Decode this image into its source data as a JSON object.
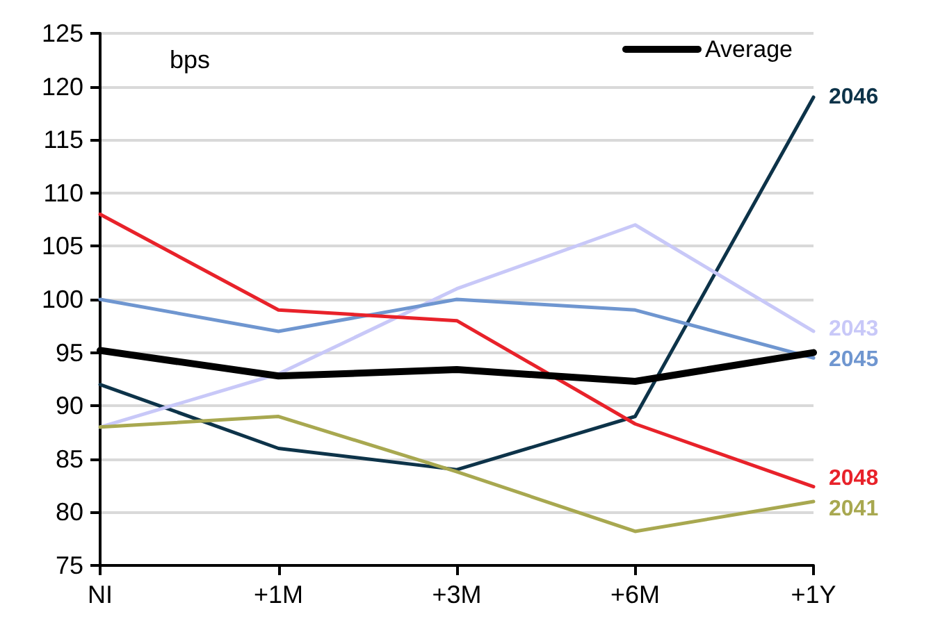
{
  "chart_data": {
    "type": "line",
    "ylabel": "bps",
    "categories": [
      "NI",
      "+1M",
      "+3M",
      "+6M",
      "+1Y"
    ],
    "series": [
      {
        "name": "Average",
        "color": "#000000",
        "values": [
          95.2,
          92.8,
          93.4,
          92.3,
          95
        ]
      },
      {
        "name": "2046",
        "color": "#0d3349",
        "values": [
          92,
          86,
          84,
          89,
          119
        ]
      },
      {
        "name": "2043",
        "color": "#c8c8f8",
        "values": [
          88,
          93,
          101,
          107,
          97
        ]
      },
      {
        "name": "2045",
        "color": "#6f96d0",
        "values": [
          100,
          97,
          100,
          99,
          94.5
        ]
      },
      {
        "name": "2048",
        "color": "#e8222a",
        "values": [
          108,
          99,
          98,
          88.3,
          82.4
        ]
      },
      {
        "name": "2041",
        "color": "#a8a850",
        "values": [
          88,
          89,
          83.8,
          78.2,
          81
        ]
      }
    ],
    "ylim": [
      75,
      125
    ],
    "yticks": [
      75,
      80,
      85,
      90,
      95,
      100,
      105,
      110,
      115,
      120,
      125
    ],
    "grid": "y",
    "legend": "top right",
    "marker": "none",
    "line_style": "solid"
  }
}
